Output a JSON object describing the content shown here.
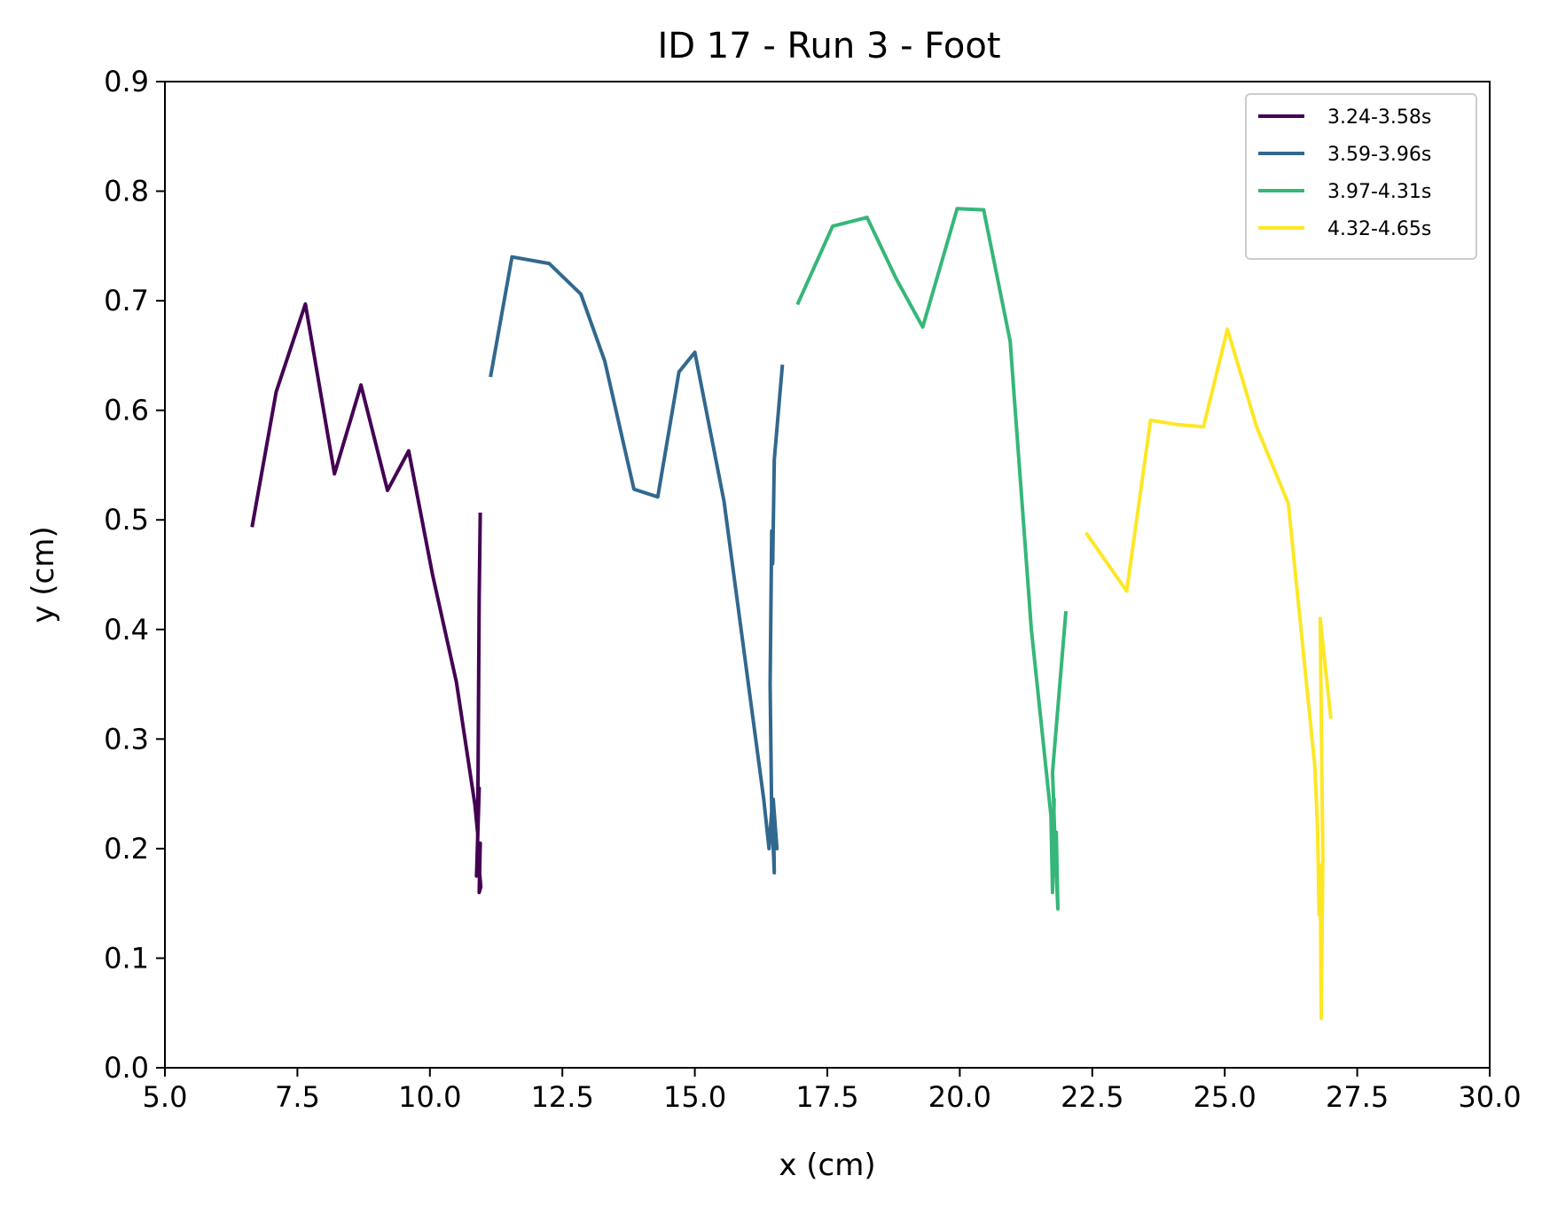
{
  "chart_data": {
    "type": "line",
    "title": "ID 17 - Run 3 - Foot",
    "xlabel": "x (cm)",
    "ylabel": "y (cm)",
    "xlim": [
      5.0,
      30.0
    ],
    "ylim": [
      0.0,
      0.9
    ],
    "xticks": [
      "5.0",
      "7.5",
      "10.0",
      "12.5",
      "15.0",
      "17.5",
      "20.0",
      "22.5",
      "25.0",
      "27.5",
      "30.0"
    ],
    "yticks": [
      "0.0",
      "0.1",
      "0.2",
      "0.3",
      "0.4",
      "0.5",
      "0.6",
      "0.7",
      "0.8",
      "0.9"
    ],
    "grid": false,
    "legend_position": "top-right",
    "series": [
      {
        "name": "3.24-3.58s",
        "color": "#440154",
        "points": [
          [
            6.65,
            0.495
          ],
          [
            7.1,
            0.617
          ],
          [
            7.65,
            0.697
          ],
          [
            8.2,
            0.542
          ],
          [
            8.7,
            0.623
          ],
          [
            9.2,
            0.527
          ],
          [
            9.6,
            0.563
          ],
          [
            10.05,
            0.45
          ],
          [
            10.5,
            0.352
          ],
          [
            10.85,
            0.24
          ],
          [
            10.9,
            0.215
          ],
          [
            10.93,
            0.255
          ],
          [
            10.88,
            0.175
          ],
          [
            10.95,
            0.205
          ],
          [
            10.93,
            0.16
          ],
          [
            10.96,
            0.165
          ],
          [
            10.9,
            0.2
          ],
          [
            10.93,
            0.43
          ],
          [
            10.95,
            0.505
          ]
        ]
      },
      {
        "name": "3.59-3.96s",
        "color": "#31688e",
        "points": [
          [
            11.15,
            0.632
          ],
          [
            11.55,
            0.74
          ],
          [
            12.25,
            0.734
          ],
          [
            12.85,
            0.706
          ],
          [
            13.3,
            0.645
          ],
          [
            13.85,
            0.528
          ],
          [
            14.3,
            0.521
          ],
          [
            14.7,
            0.635
          ],
          [
            15.0,
            0.653
          ],
          [
            15.55,
            0.517
          ],
          [
            16.3,
            0.245
          ],
          [
            16.4,
            0.2
          ],
          [
            16.45,
            0.235
          ],
          [
            16.5,
            0.178
          ],
          [
            16.48,
            0.245
          ],
          [
            16.55,
            0.2
          ],
          [
            16.45,
            0.23
          ],
          [
            16.42,
            0.35
          ],
          [
            16.45,
            0.49
          ],
          [
            16.47,
            0.46
          ],
          [
            16.5,
            0.555
          ],
          [
            16.65,
            0.64
          ]
        ]
      },
      {
        "name": "3.97-4.31s",
        "color": "#35b779",
        "points": [
          [
            16.95,
            0.698
          ],
          [
            17.6,
            0.768
          ],
          [
            18.25,
            0.776
          ],
          [
            18.8,
            0.72
          ],
          [
            19.3,
            0.676
          ],
          [
            19.95,
            0.784
          ],
          [
            20.45,
            0.783
          ],
          [
            20.95,
            0.663
          ],
          [
            21.35,
            0.4
          ],
          [
            21.72,
            0.23
          ],
          [
            21.75,
            0.16
          ],
          [
            21.78,
            0.245
          ],
          [
            21.74,
            0.2
          ],
          [
            21.82,
            0.215
          ],
          [
            21.85,
            0.145
          ],
          [
            21.8,
            0.2
          ],
          [
            21.75,
            0.27
          ],
          [
            22.0,
            0.415
          ]
        ]
      },
      {
        "name": "4.32-4.65s",
        "color": "#fde725",
        "points": [
          [
            22.4,
            0.487
          ],
          [
            23.15,
            0.435
          ],
          [
            23.6,
            0.591
          ],
          [
            24.1,
            0.587
          ],
          [
            24.6,
            0.585
          ],
          [
            25.05,
            0.674
          ],
          [
            25.6,
            0.585
          ],
          [
            26.2,
            0.515
          ],
          [
            26.7,
            0.275
          ],
          [
            26.75,
            0.22
          ],
          [
            26.78,
            0.14
          ],
          [
            26.8,
            0.185
          ],
          [
            26.82,
            0.045
          ],
          [
            26.85,
            0.19
          ],
          [
            26.8,
            0.41
          ],
          [
            27.0,
            0.32
          ]
        ]
      }
    ]
  }
}
